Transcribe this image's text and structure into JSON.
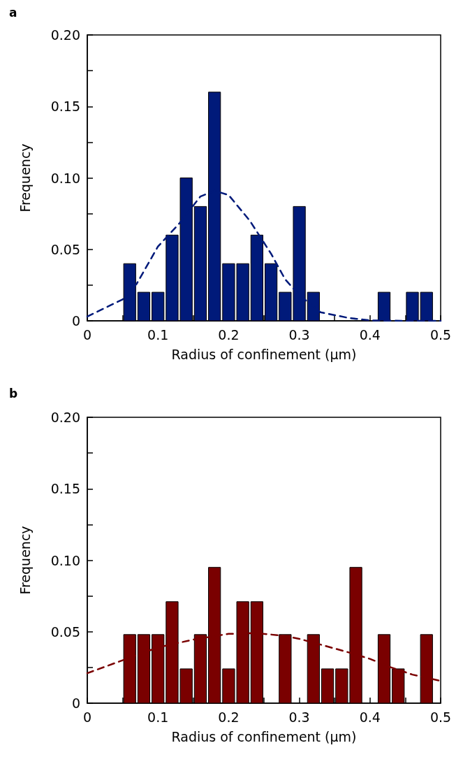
{
  "chart_data": [
    {
      "type": "histogram",
      "title": "a",
      "xlabel": "Radius of confinement (μm)",
      "ylabel": "Frequency",
      "color": "#001a7a",
      "bins": [
        0.05,
        0.07,
        0.09,
        0.11,
        0.13,
        0.15,
        0.17,
        0.19,
        0.21,
        0.23,
        0.25,
        0.27,
        0.29,
        0.31,
        0.33,
        0.35,
        0.37,
        0.39,
        0.41,
        0.43,
        0.45,
        0.47,
        0.49
      ],
      "values": [
        0.04,
        0.02,
        0.02,
        0.06,
        0.1,
        0.08,
        0.16,
        0.04,
        0.04,
        0.06,
        0.04,
        0.02,
        0.08,
        0.02,
        0,
        0,
        0,
        0,
        0.02,
        0,
        0.02,
        0.02
      ],
      "series": [
        {
          "type": "line",
          "color": "#001a7a",
          "line_style": "dashed",
          "marker": "none",
          "x": [
            0,
            0.05,
            0.07,
            0.1,
            0.13,
            0.16,
            0.18,
            0.2,
            0.23,
            0.26,
            0.28,
            0.3,
            0.33,
            0.37,
            0.4,
            0.45,
            0.5
          ],
          "values": [
            0.003,
            0.015,
            0.026,
            0.052,
            0.068,
            0.087,
            0.091,
            0.088,
            0.07,
            0.047,
            0.029,
            0.018,
            0.006,
            0.002,
            0.0003,
            0,
            0
          ]
        }
      ],
      "xlim": [
        0,
        0.5
      ],
      "xticks": [
        0,
        {
          "value": 0.05,
          "label": null
        },
        0.1,
        {
          "value": 0.15,
          "label": null
        },
        0.2,
        {
          "value": 0.25,
          "label": null
        },
        0.3,
        {
          "value": 0.35,
          "label": null
        },
        0.4,
        {
          "value": 0.45,
          "label": null
        },
        0.5
      ],
      "ylim": [
        0,
        0.2
      ],
      "yticks": [
        0,
        {
          "value": 0.025,
          "label": null
        },
        0.05,
        {
          "value": 0.075,
          "label": null
        },
        {
          "value": 0.1,
          "label": "0.10"
        },
        {
          "value": 0.125,
          "label": null
        },
        0.15,
        {
          "value": 0.175,
          "label": null
        },
        {
          "value": 0.2,
          "label": "0.20"
        }
      ]
    },
    {
      "type": "histogram",
      "title": "b",
      "xlabel": "Radius of confinement (μm)",
      "ylabel": "Frequency",
      "color": "#7a0000",
      "bins": [
        0.05,
        0.07,
        0.09,
        0.11,
        0.13,
        0.15,
        0.17,
        0.19,
        0.21,
        0.23,
        0.25,
        0.27,
        0.29,
        0.31,
        0.33,
        0.35,
        0.37,
        0.39,
        0.41,
        0.43,
        0.45,
        0.47,
        0.49
      ],
      "values": [
        0.048,
        0.048,
        0.048,
        0.071,
        0.024,
        0.048,
        0.095,
        0.024,
        0.071,
        0.071,
        0,
        0.048,
        0,
        0.048,
        0.024,
        0.024,
        0.095,
        0,
        0.048,
        0.024,
        0,
        0.048
      ],
      "series": [
        {
          "type": "line",
          "color": "#7a0000",
          "line_style": "dashed",
          "marker": "none",
          "x": [
            0,
            0.05,
            0.1,
            0.15,
            0.2,
            0.24,
            0.28,
            0.3,
            0.33,
            0.37,
            0.4,
            0.43,
            0.46,
            0.5
          ],
          "values": [
            0.021,
            0.03,
            0.039,
            0.0445,
            0.0485,
            0.049,
            0.047,
            0.045,
            0.041,
            0.0355,
            0.031,
            0.025,
            0.02,
            0.0156
          ]
        }
      ],
      "xlim": [
        0,
        0.5
      ],
      "xticks": [
        0,
        {
          "value": 0.05,
          "label": null
        },
        0.1,
        {
          "value": 0.15,
          "label": null
        },
        0.2,
        {
          "value": 0.25,
          "label": null
        },
        0.3,
        {
          "value": 0.35,
          "label": null
        },
        0.4,
        {
          "value": 0.45,
          "label": null
        },
        0.5
      ],
      "ylim": [
        0,
        0.2
      ],
      "yticks": [
        0,
        {
          "value": 0.025,
          "label": null
        },
        0.05,
        {
          "value": 0.075,
          "label": null
        },
        {
          "value": 0.1,
          "label": "0.10"
        },
        {
          "value": 0.125,
          "label": null
        },
        0.15,
        {
          "value": 0.175,
          "label": null
        },
        {
          "value": 0.2,
          "label": "0.20"
        }
      ]
    }
  ]
}
